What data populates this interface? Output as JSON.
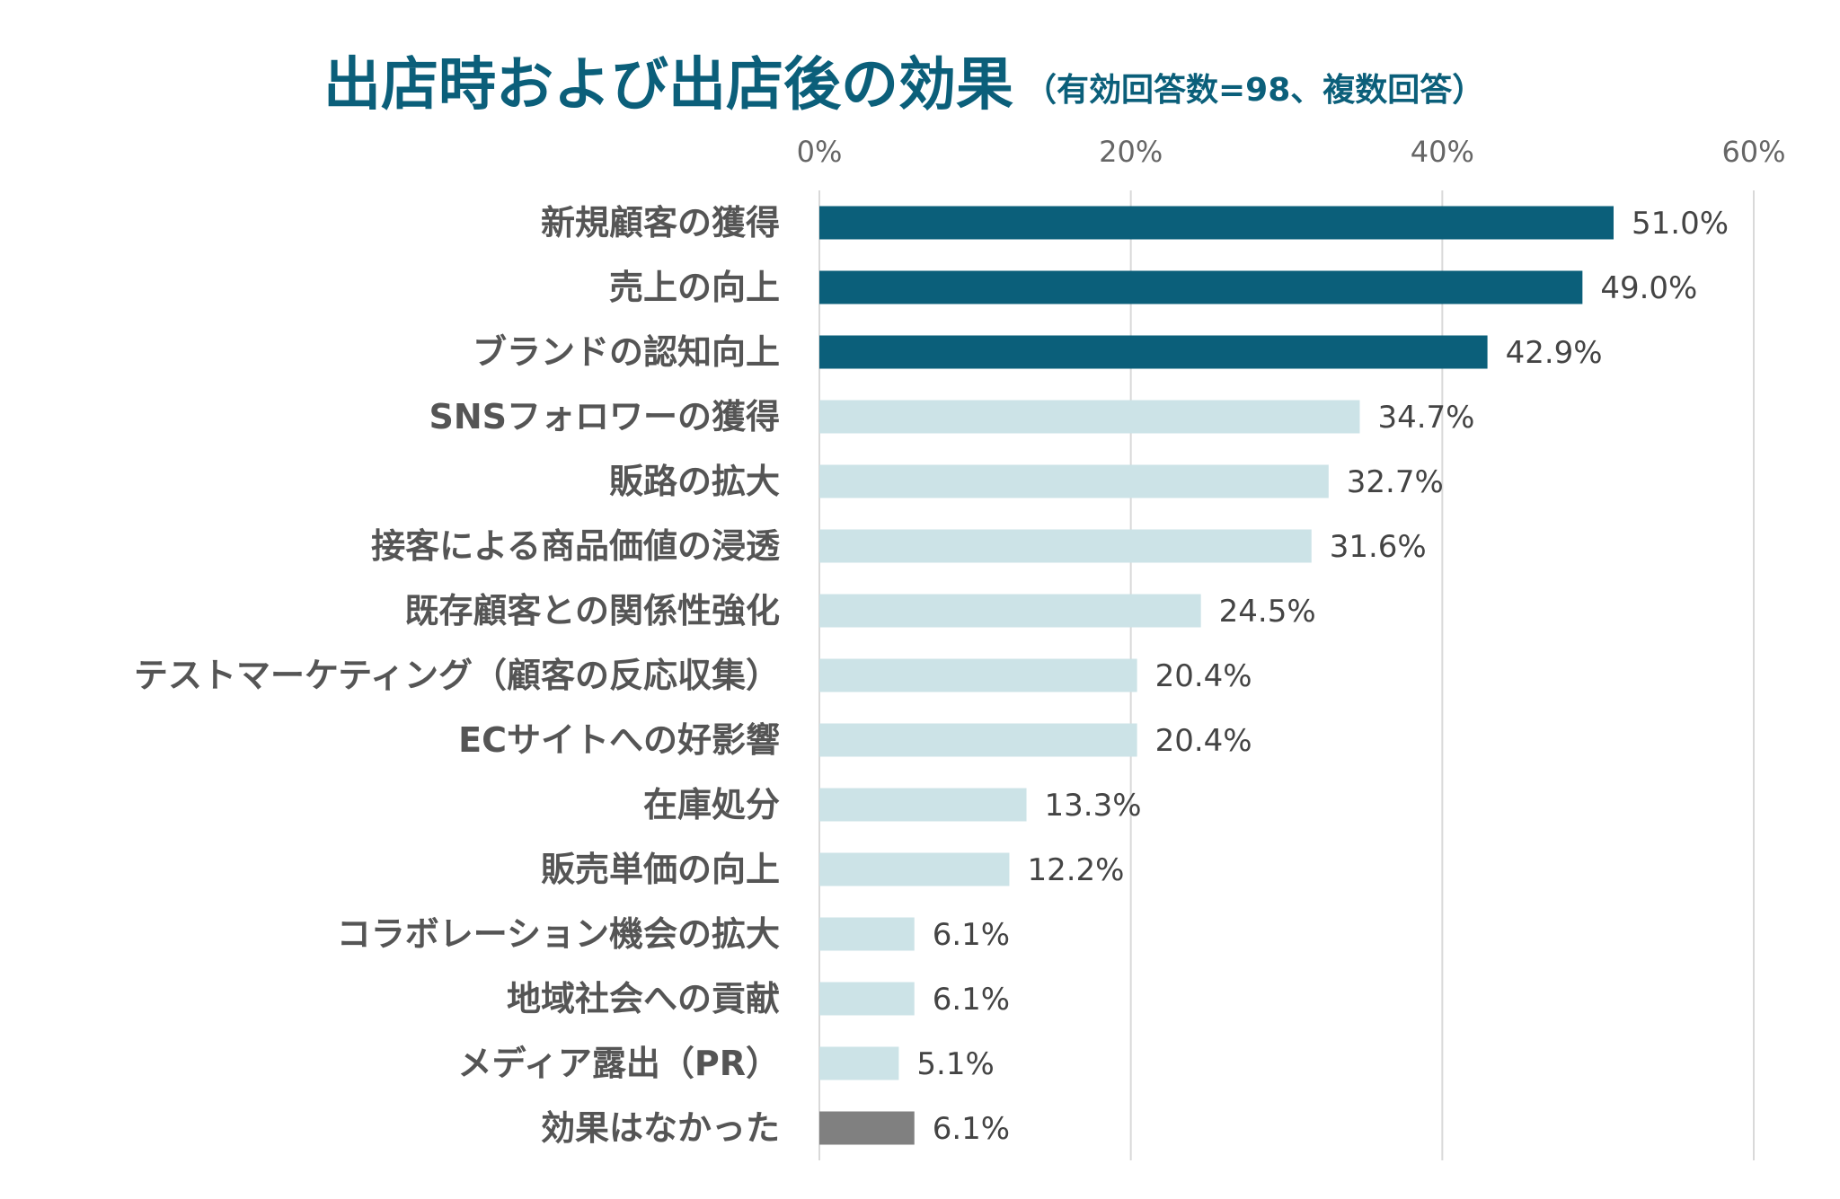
{
  "chart_data": {
    "type": "bar",
    "orientation": "horizontal",
    "title": "出店時および出店後の効果",
    "subtitle": "（有効回答数=98、複数回答）",
    "xlabel": "",
    "ylabel": "",
    "xlim": [
      0,
      60
    ],
    "x_ticks": [
      0,
      20,
      40,
      60
    ],
    "x_tick_labels": [
      "0%",
      "20%",
      "40%",
      "60%"
    ],
    "x_axis_position": "top",
    "grid": true,
    "legend": "none",
    "unit": "%",
    "categories": [
      "新規顧客の獲得",
      "売上の向上",
      "ブランドの認知向上",
      "SNSフォロワーの獲得",
      "販路の拡大",
      "接客による商品価値の浸透",
      "既存顧客との関係性強化",
      "テストマーケティング（顧客の反応収集）",
      "ECサイトへの好影響",
      "在庫処分",
      "販売単価の向上",
      "コラボレーション機会の拡大",
      "地域社会への貢献",
      "メディア露出（PR）",
      "効果はなかった"
    ],
    "values": [
      51.0,
      49.0,
      42.9,
      34.7,
      32.7,
      31.6,
      24.5,
      20.4,
      20.4,
      13.3,
      12.2,
      6.1,
      6.1,
      5.1,
      6.1
    ],
    "value_labels": [
      "51.0%",
      "49.0%",
      "42.9%",
      "34.7%",
      "32.7%",
      "31.6%",
      "24.5%",
      "20.4%",
      "20.4%",
      "13.3%",
      "12.2%",
      "6.1%",
      "6.1%",
      "5.1%",
      "6.1%"
    ],
    "bar_groups": [
      "top",
      "top",
      "top",
      "other",
      "other",
      "other",
      "other",
      "other",
      "other",
      "other",
      "other",
      "other",
      "other",
      "other",
      "none"
    ],
    "colors": {
      "top": "#0b5f7a",
      "other": "#cce3e7",
      "none": "#808080",
      "title": "#0b5f7a"
    }
  }
}
